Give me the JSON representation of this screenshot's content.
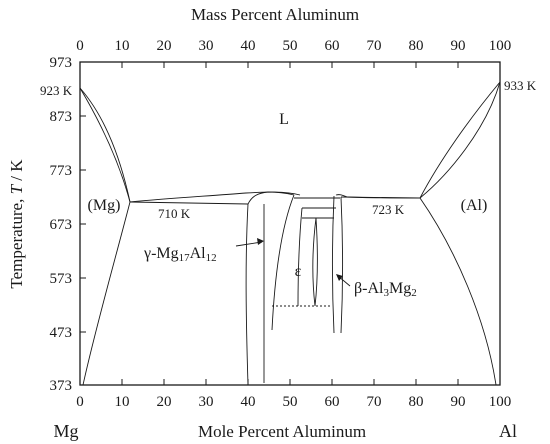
{
  "top_axis": {
    "title": "Mass Percent Aluminum",
    "ticks": [
      "0",
      "10",
      "20",
      "30",
      "40",
      "50",
      "60",
      "70",
      "80",
      "90",
      "100"
    ]
  },
  "bottom_axis": {
    "title": "Mole Percent Aluminum",
    "ticks": [
      "0",
      "10",
      "20",
      "30",
      "40",
      "50",
      "60",
      "70",
      "80",
      "90",
      "100"
    ],
    "left_end": "Mg",
    "right_end": "Al"
  },
  "left_axis": {
    "title_prefix": "Temperature, ",
    "title_var": "T",
    "title_suffix": " / K",
    "ticks": [
      "973",
      "873",
      "773",
      "673",
      "573",
      "473",
      "373"
    ]
  },
  "annotations": {
    "mg_melt": "923 K",
    "al_melt": "933 K",
    "eutectic_left": "710 K",
    "eutectic_right": "723 K"
  },
  "phases": {
    "liquid": "L",
    "mg_solid": "(Mg)",
    "al_solid": "(Al)",
    "epsilon": "ε",
    "gamma": {
      "prefix": "γ-Mg",
      "sub1": "17",
      "mid": "Al",
      "sub2": "12"
    },
    "beta": {
      "prefix": "β-Al",
      "sub1": "3",
      "mid": "Mg",
      "sub2": "2"
    }
  },
  "colors": {
    "ink": "#1a1a1a",
    "background": "#ffffff"
  }
}
